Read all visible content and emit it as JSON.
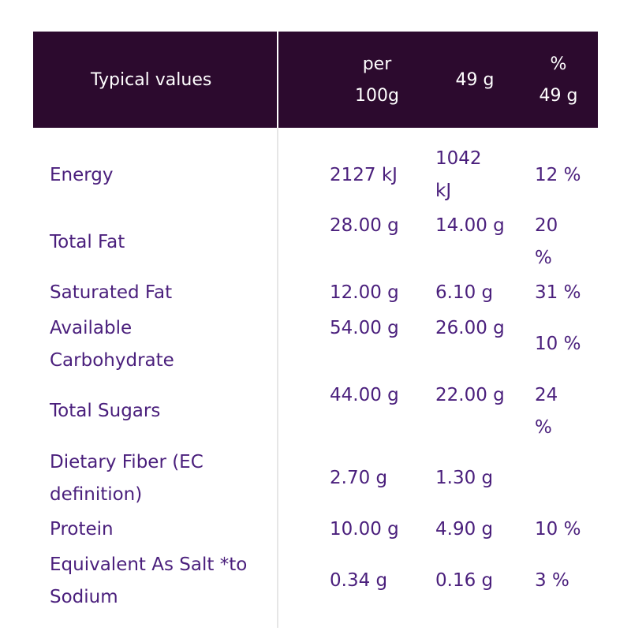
{
  "header": {
    "typical_values": "Typical values",
    "per_line1": "per",
    "per_line2": "100g",
    "portion": "49 g",
    "pct_line1": "%",
    "pct_line2": "49 g"
  },
  "rows": [
    {
      "name": "Energy",
      "per100": "2127 kJ",
      "portion": "1042 kJ",
      "pct": "12 %"
    },
    {
      "name": "Total Fat",
      "per100": "28.00 g",
      "portion": "14.00 g",
      "pct": "20 %"
    },
    {
      "name": "Saturated Fat",
      "per100": "12.00 g",
      "portion": "6.10 g",
      "pct": "31 %"
    },
    {
      "name": "Available Carbohydrate",
      "per100": "54.00 g",
      "portion": "26.00 g",
      "pct": "10 %"
    },
    {
      "name": "Total Sugars",
      "per100": "44.00 g",
      "portion": "22.00 g",
      "pct": "24 %"
    },
    {
      "name": "Dietary Fiber (EC definition)",
      "per100": "2.70 g",
      "portion": "1.30 g",
      "pct": ""
    },
    {
      "name": "Protein",
      "per100": "10.00 g",
      "portion": "4.90 g",
      "pct": "10 %"
    },
    {
      "name": "Equivalent As Salt *to Sodium",
      "per100": "0.34 g",
      "portion": "0.16 g",
      "pct": "3 %"
    }
  ],
  "colors": {
    "header_bg": "#2c0a2e",
    "text_purple": "#4a1f7c"
  }
}
